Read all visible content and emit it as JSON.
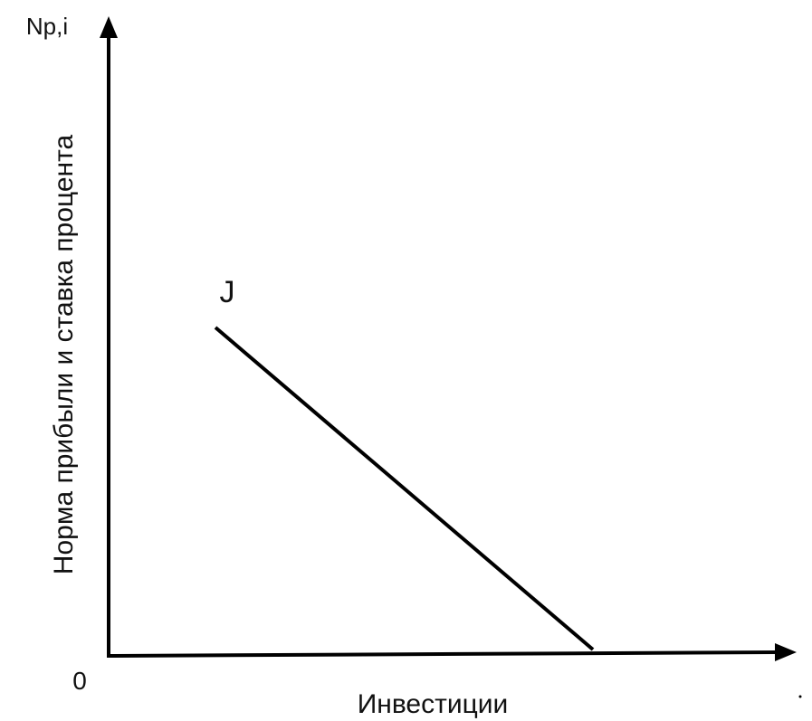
{
  "diagram": {
    "y_axis_label": "Np,i",
    "y_axis_title": "Норма прибыли и ставка процента",
    "origin_label": "0",
    "x_axis_title": "Инвестиции",
    "curve_label": "J"
  }
}
